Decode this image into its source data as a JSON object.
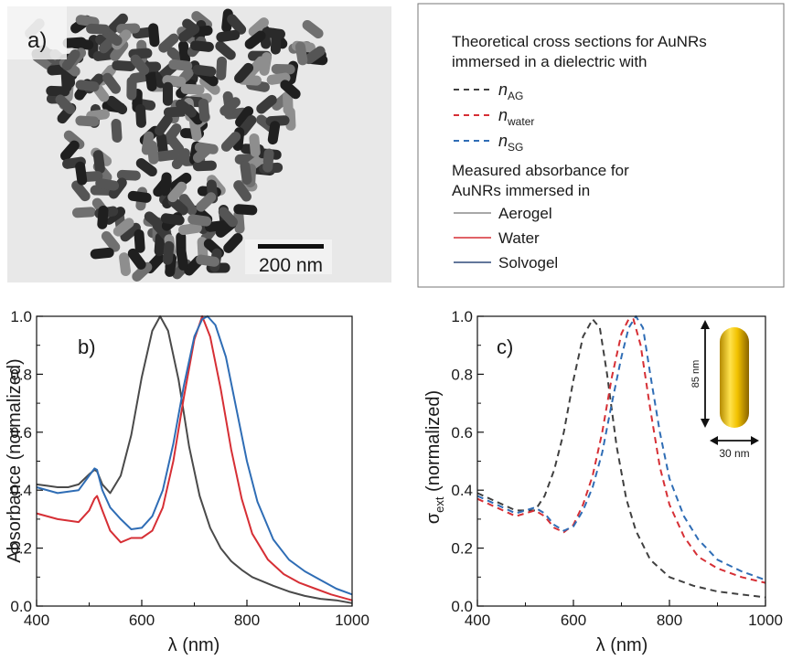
{
  "panel_a": {
    "label": "a)",
    "scale_bar_label": "200 nm"
  },
  "legend": {
    "heading_line1": "Theoretical cross sections for AuNRs",
    "heading_line2": "immersed in a dielectric with",
    "theory_entries": [
      {
        "symbol": "n",
        "subscript": "AG",
        "color": "#404040",
        "style": "dashed"
      },
      {
        "symbol": "n",
        "subscript": "water",
        "color": "#d62f35",
        "style": "dashed"
      },
      {
        "symbol": "n",
        "subscript": "SG",
        "color": "#2f6db5",
        "style": "dashed"
      }
    ],
    "measured_heading_line1": "Measured absorbance for",
    "measured_heading_line2": "AuNRs immersed in",
    "measured_entries": [
      {
        "label": "Aerogel",
        "color": "#8c8c8c"
      },
      {
        "label": "Water",
        "color": "#d62f35"
      },
      {
        "label": "Solvogel",
        "color": "#2e4a7a"
      }
    ]
  },
  "inset": {
    "length_label": "85 nm",
    "width_label": "30 nm"
  },
  "chart_data": [
    {
      "type": "line",
      "panel_label": "b)",
      "xlabel": "λ (nm)",
      "ylabel": "Absorbance (normalized)",
      "xlim": [
        400,
        1000
      ],
      "ylim": [
        0,
        1.0
      ],
      "xticks": [
        400,
        600,
        800,
        1000
      ],
      "yticks": [
        0.0,
        0.2,
        0.4,
        0.6,
        0.8,
        1.0
      ],
      "ytick_labels": [
        "0.0",
        "0.2",
        "0.4",
        "0.6",
        "0.8",
        "1.0"
      ],
      "grid": false,
      "series": [
        {
          "color": "#4a4a4a",
          "style": "solid",
          "x": [
            400,
            420,
            440,
            460,
            480,
            500,
            510,
            515,
            525,
            540,
            560,
            580,
            600,
            620,
            635,
            650,
            670,
            690,
            710,
            730,
            750,
            770,
            790,
            810,
            830,
            850,
            880,
            910,
            940,
            970,
            1000
          ],
          "y": [
            0.42,
            0.415,
            0.41,
            0.41,
            0.42,
            0.455,
            0.47,
            0.465,
            0.42,
            0.39,
            0.45,
            0.59,
            0.79,
            0.95,
            1.0,
            0.95,
            0.78,
            0.55,
            0.38,
            0.27,
            0.2,
            0.155,
            0.125,
            0.1,
            0.085,
            0.07,
            0.05,
            0.035,
            0.025,
            0.02,
            0.01
          ]
        },
        {
          "color": "#d62f35",
          "style": "solid",
          "x": [
            400,
            440,
            480,
            500,
            510,
            515,
            525,
            540,
            560,
            580,
            600,
            620,
            640,
            660,
            680,
            700,
            715,
            730,
            750,
            770,
            790,
            810,
            840,
            870,
            900,
            930,
            960,
            1000
          ],
          "y": [
            0.32,
            0.3,
            0.29,
            0.33,
            0.37,
            0.38,
            0.33,
            0.26,
            0.22,
            0.235,
            0.235,
            0.26,
            0.34,
            0.5,
            0.72,
            0.92,
            1.0,
            0.93,
            0.75,
            0.54,
            0.37,
            0.25,
            0.16,
            0.11,
            0.08,
            0.06,
            0.04,
            0.02
          ]
        },
        {
          "color": "#2f6db5",
          "style": "solid",
          "x": [
            400,
            440,
            480,
            500,
            510,
            515,
            525,
            540,
            560,
            580,
            600,
            620,
            640,
            660,
            680,
            700,
            715,
            725,
            740,
            760,
            780,
            800,
            820,
            850,
            880,
            910,
            940,
            970,
            1000
          ],
          "y": [
            0.41,
            0.39,
            0.4,
            0.45,
            0.475,
            0.47,
            0.4,
            0.34,
            0.3,
            0.265,
            0.27,
            0.31,
            0.4,
            0.56,
            0.76,
            0.93,
            0.99,
            1.0,
            0.97,
            0.86,
            0.68,
            0.5,
            0.36,
            0.23,
            0.16,
            0.12,
            0.09,
            0.06,
            0.04
          ]
        }
      ]
    },
    {
      "type": "line",
      "panel_label": "c)",
      "xlabel": "λ (nm)",
      "ylabel_main": "σ",
      "ylabel_sub": "ext",
      "ylabel_rest": " (normalized)",
      "xlim": [
        400,
        1000
      ],
      "ylim": [
        0,
        1.0
      ],
      "xticks": [
        400,
        600,
        800,
        1000
      ],
      "yticks": [
        0.0,
        0.2,
        0.4,
        0.6,
        0.8,
        1.0
      ],
      "ytick_labels": [
        "0.0",
        "0.2",
        "0.4",
        "0.6",
        "0.8",
        "1.0"
      ],
      "grid": false,
      "series": [
        {
          "color": "#404040",
          "style": "dashed",
          "x": [
            400,
            440,
            480,
            520,
            540,
            560,
            580,
            600,
            620,
            640,
            655,
            670,
            690,
            710,
            730,
            760,
            800,
            850,
            900,
            950,
            1000
          ],
          "y": [
            0.39,
            0.36,
            0.33,
            0.33,
            0.38,
            0.47,
            0.6,
            0.78,
            0.93,
            0.99,
            0.96,
            0.8,
            0.55,
            0.37,
            0.26,
            0.16,
            0.1,
            0.07,
            0.05,
            0.04,
            0.03
          ]
        },
        {
          "color": "#d62f35",
          "style": "dashed",
          "x": [
            400,
            440,
            480,
            520,
            540,
            560,
            580,
            600,
            620,
            640,
            660,
            680,
            700,
            715,
            725,
            740,
            760,
            780,
            800,
            830,
            860,
            900,
            950,
            1000
          ],
          "y": [
            0.37,
            0.34,
            0.31,
            0.33,
            0.31,
            0.27,
            0.255,
            0.28,
            0.35,
            0.45,
            0.6,
            0.79,
            0.94,
            0.99,
            0.99,
            0.9,
            0.68,
            0.48,
            0.35,
            0.24,
            0.17,
            0.13,
            0.1,
            0.08
          ]
        },
        {
          "color": "#2f6db5",
          "style": "dashed",
          "x": [
            400,
            440,
            480,
            520,
            540,
            560,
            580,
            600,
            620,
            640,
            660,
            680,
            700,
            715,
            730,
            745,
            760,
            780,
            800,
            830,
            860,
            900,
            950,
            1000
          ],
          "y": [
            0.38,
            0.35,
            0.32,
            0.34,
            0.32,
            0.28,
            0.26,
            0.275,
            0.33,
            0.41,
            0.53,
            0.7,
            0.86,
            0.96,
            1.0,
            0.96,
            0.8,
            0.6,
            0.44,
            0.31,
            0.23,
            0.16,
            0.12,
            0.09
          ]
        }
      ]
    }
  ]
}
